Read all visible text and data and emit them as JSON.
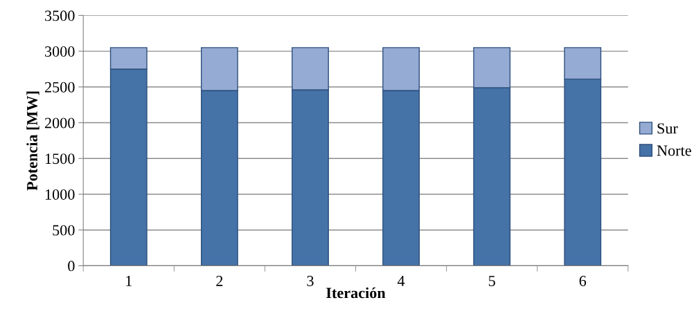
{
  "chart_data": {
    "type": "bar",
    "stacked": true,
    "xlabel": "Iteración",
    "ylabel": "Potencia [MW]",
    "categories": [
      "1",
      "2",
      "3",
      "4",
      "5",
      "6"
    ],
    "series": [
      {
        "name": "Norte",
        "color": "#4572a7",
        "values": [
          2750,
          2450,
          2460,
          2450,
          2490,
          2610
        ]
      },
      {
        "name": "Sur",
        "color": "#95abd3",
        "values": [
          300,
          600,
          590,
          600,
          560,
          440
        ]
      }
    ],
    "ylim": [
      0,
      3500
    ],
    "yticks": [
      0,
      500,
      1000,
      1500,
      2000,
      2500,
      3000,
      3500
    ],
    "grid": "y",
    "legend": "right"
  }
}
